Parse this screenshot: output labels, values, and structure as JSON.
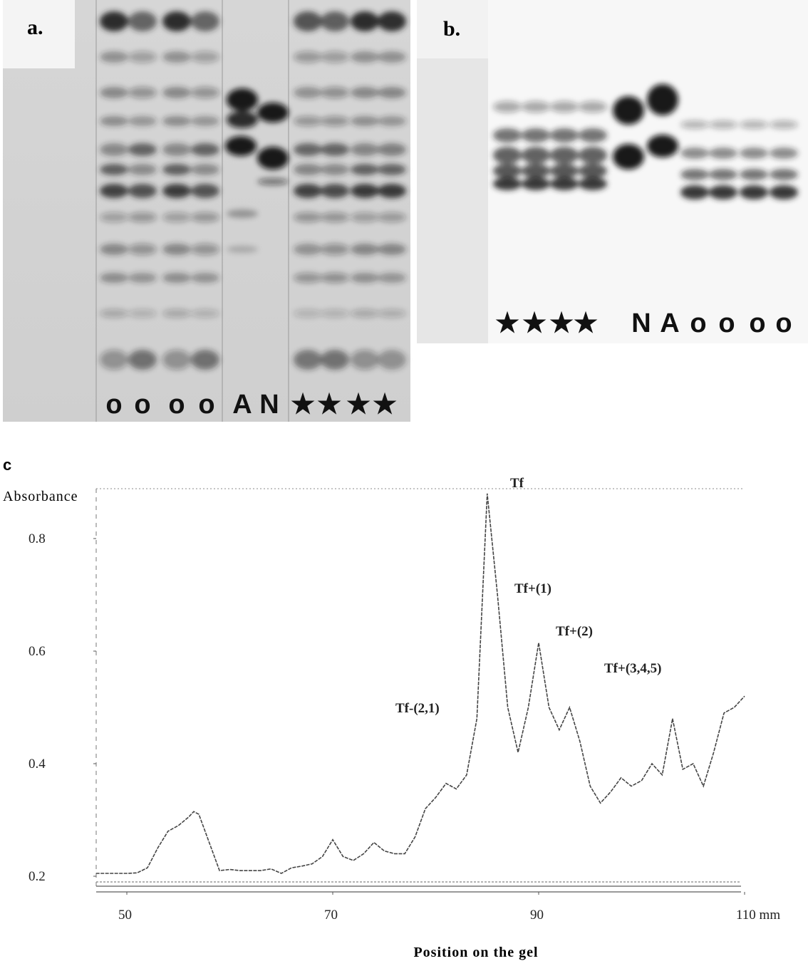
{
  "panels": [
    {
      "label": "a.",
      "lanes": [
        "o",
        "o",
        "o",
        "o",
        "A",
        "N",
        "★",
        "★",
        "★",
        "★"
      ]
    },
    {
      "label": "b.",
      "lanes": [
        "★",
        "★",
        "★",
        "★",
        "N",
        "A",
        "o",
        "o",
        "o",
        "o"
      ]
    }
  ],
  "chart_data": {
    "type": "line",
    "panel_label": "c",
    "y_label": "Absorbance",
    "x_label": "Position on the gel",
    "x": [
      47,
      50,
      51,
      52,
      53,
      54,
      55,
      56,
      56.5,
      57,
      58,
      59,
      60,
      61,
      62,
      63,
      64,
      65,
      66,
      67,
      68,
      69,
      70,
      71,
      72,
      73,
      74,
      75,
      76,
      77,
      78,
      79,
      80,
      81,
      82,
      83,
      84,
      85,
      86,
      87,
      88,
      89,
      90,
      91,
      92,
      93,
      94,
      95,
      96,
      97,
      98,
      99,
      100,
      101,
      102,
      103,
      104,
      105,
      106,
      107,
      108,
      109,
      110
    ],
    "series": [
      {
        "name": "Absorbance",
        "color": "#444444",
        "values": [
          0.205,
          0.205,
          0.206,
          0.215,
          0.25,
          0.28,
          0.29,
          0.305,
          0.315,
          0.31,
          0.26,
          0.21,
          0.212,
          0.21,
          0.21,
          0.21,
          0.213,
          0.205,
          0.215,
          0.218,
          0.222,
          0.235,
          0.265,
          0.235,
          0.228,
          0.24,
          0.26,
          0.245,
          0.24,
          0.24,
          0.27,
          0.32,
          0.34,
          0.365,
          0.355,
          0.38,
          0.48,
          0.88,
          0.7,
          0.5,
          0.42,
          0.5,
          0.615,
          0.5,
          0.46,
          0.5,
          0.44,
          0.36,
          0.33,
          0.35,
          0.375,
          0.36,
          0.37,
          0.4,
          0.38,
          0.48,
          0.39,
          0.4,
          0.36,
          0.42,
          0.49,
          0.5,
          0.52
        ]
      }
    ],
    "xlim": [
      47,
      110
    ],
    "ylim": [
      0.16,
      0.89
    ],
    "xticks": [
      50,
      70,
      90,
      {
        "value": 110,
        "label": "110 mm"
      }
    ],
    "yticks": [
      0.2,
      0.4,
      0.6,
      0.8
    ],
    "annotations": [
      "Tf",
      "Tf+(1)",
      "Tf+(2)",
      "Tf+(3,4,5)",
      "Tf-(2,1)"
    ]
  }
}
